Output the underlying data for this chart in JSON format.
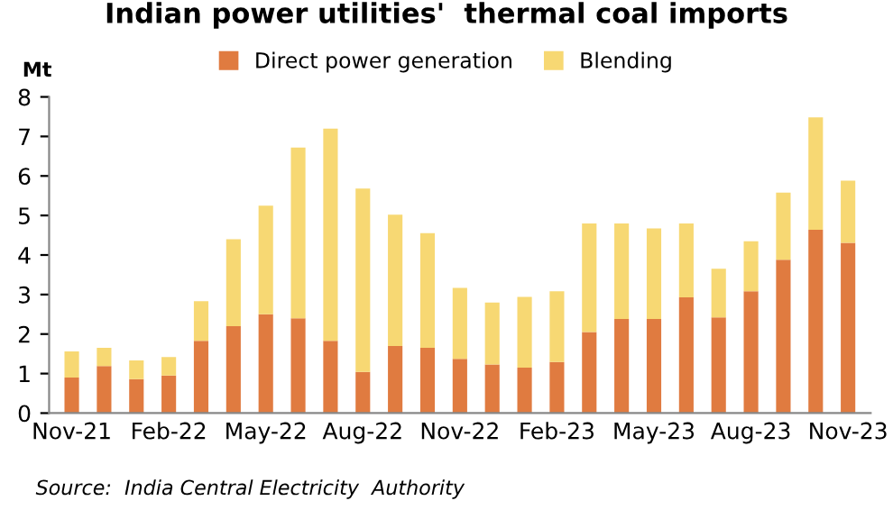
{
  "chart_data": {
    "type": "bar",
    "title": "Indian power utilities'  thermal coal imports",
    "ylabel": "Mt",
    "stacked": true,
    "legend": "top",
    "grid": false,
    "categories": [
      "Nov-21",
      null,
      null,
      "Feb-22",
      null,
      null,
      "May-22",
      null,
      null,
      "Aug-22",
      null,
      null,
      "Nov-22",
      null,
      null,
      "Feb-23",
      null,
      null,
      "May-23",
      null,
      null,
      "Aug-23",
      null,
      null,
      "Nov-23"
    ],
    "series": [
      {
        "name": "Direct power generation",
        "color": "#e07b40",
        "values": [
          0.9,
          1.19,
          0.86,
          0.95,
          1.83,
          2.2,
          2.5,
          2.4,
          1.83,
          1.04,
          1.7,
          1.65,
          1.37,
          1.23,
          1.15,
          1.29,
          2.05,
          2.38,
          2.38,
          2.93,
          2.42,
          3.08,
          3.88,
          4.64,
          4.31
        ]
      },
      {
        "name": "Blending",
        "color": "#f7d873",
        "values": [
          0.66,
          0.46,
          0.47,
          0.47,
          1.0,
          2.2,
          2.75,
          4.32,
          5.37,
          4.64,
          3.32,
          2.9,
          1.8,
          1.57,
          1.79,
          1.79,
          2.75,
          2.42,
          2.29,
          1.87,
          1.23,
          1.27,
          1.7,
          2.84,
          1.57
        ]
      }
    ],
    "ylim": [
      0,
      8
    ],
    "yticks": [
      0,
      1,
      2,
      3,
      4,
      5,
      6,
      7,
      8
    ],
    "annotations": [
      "Source:  India Central Electricity  Authority"
    ]
  }
}
